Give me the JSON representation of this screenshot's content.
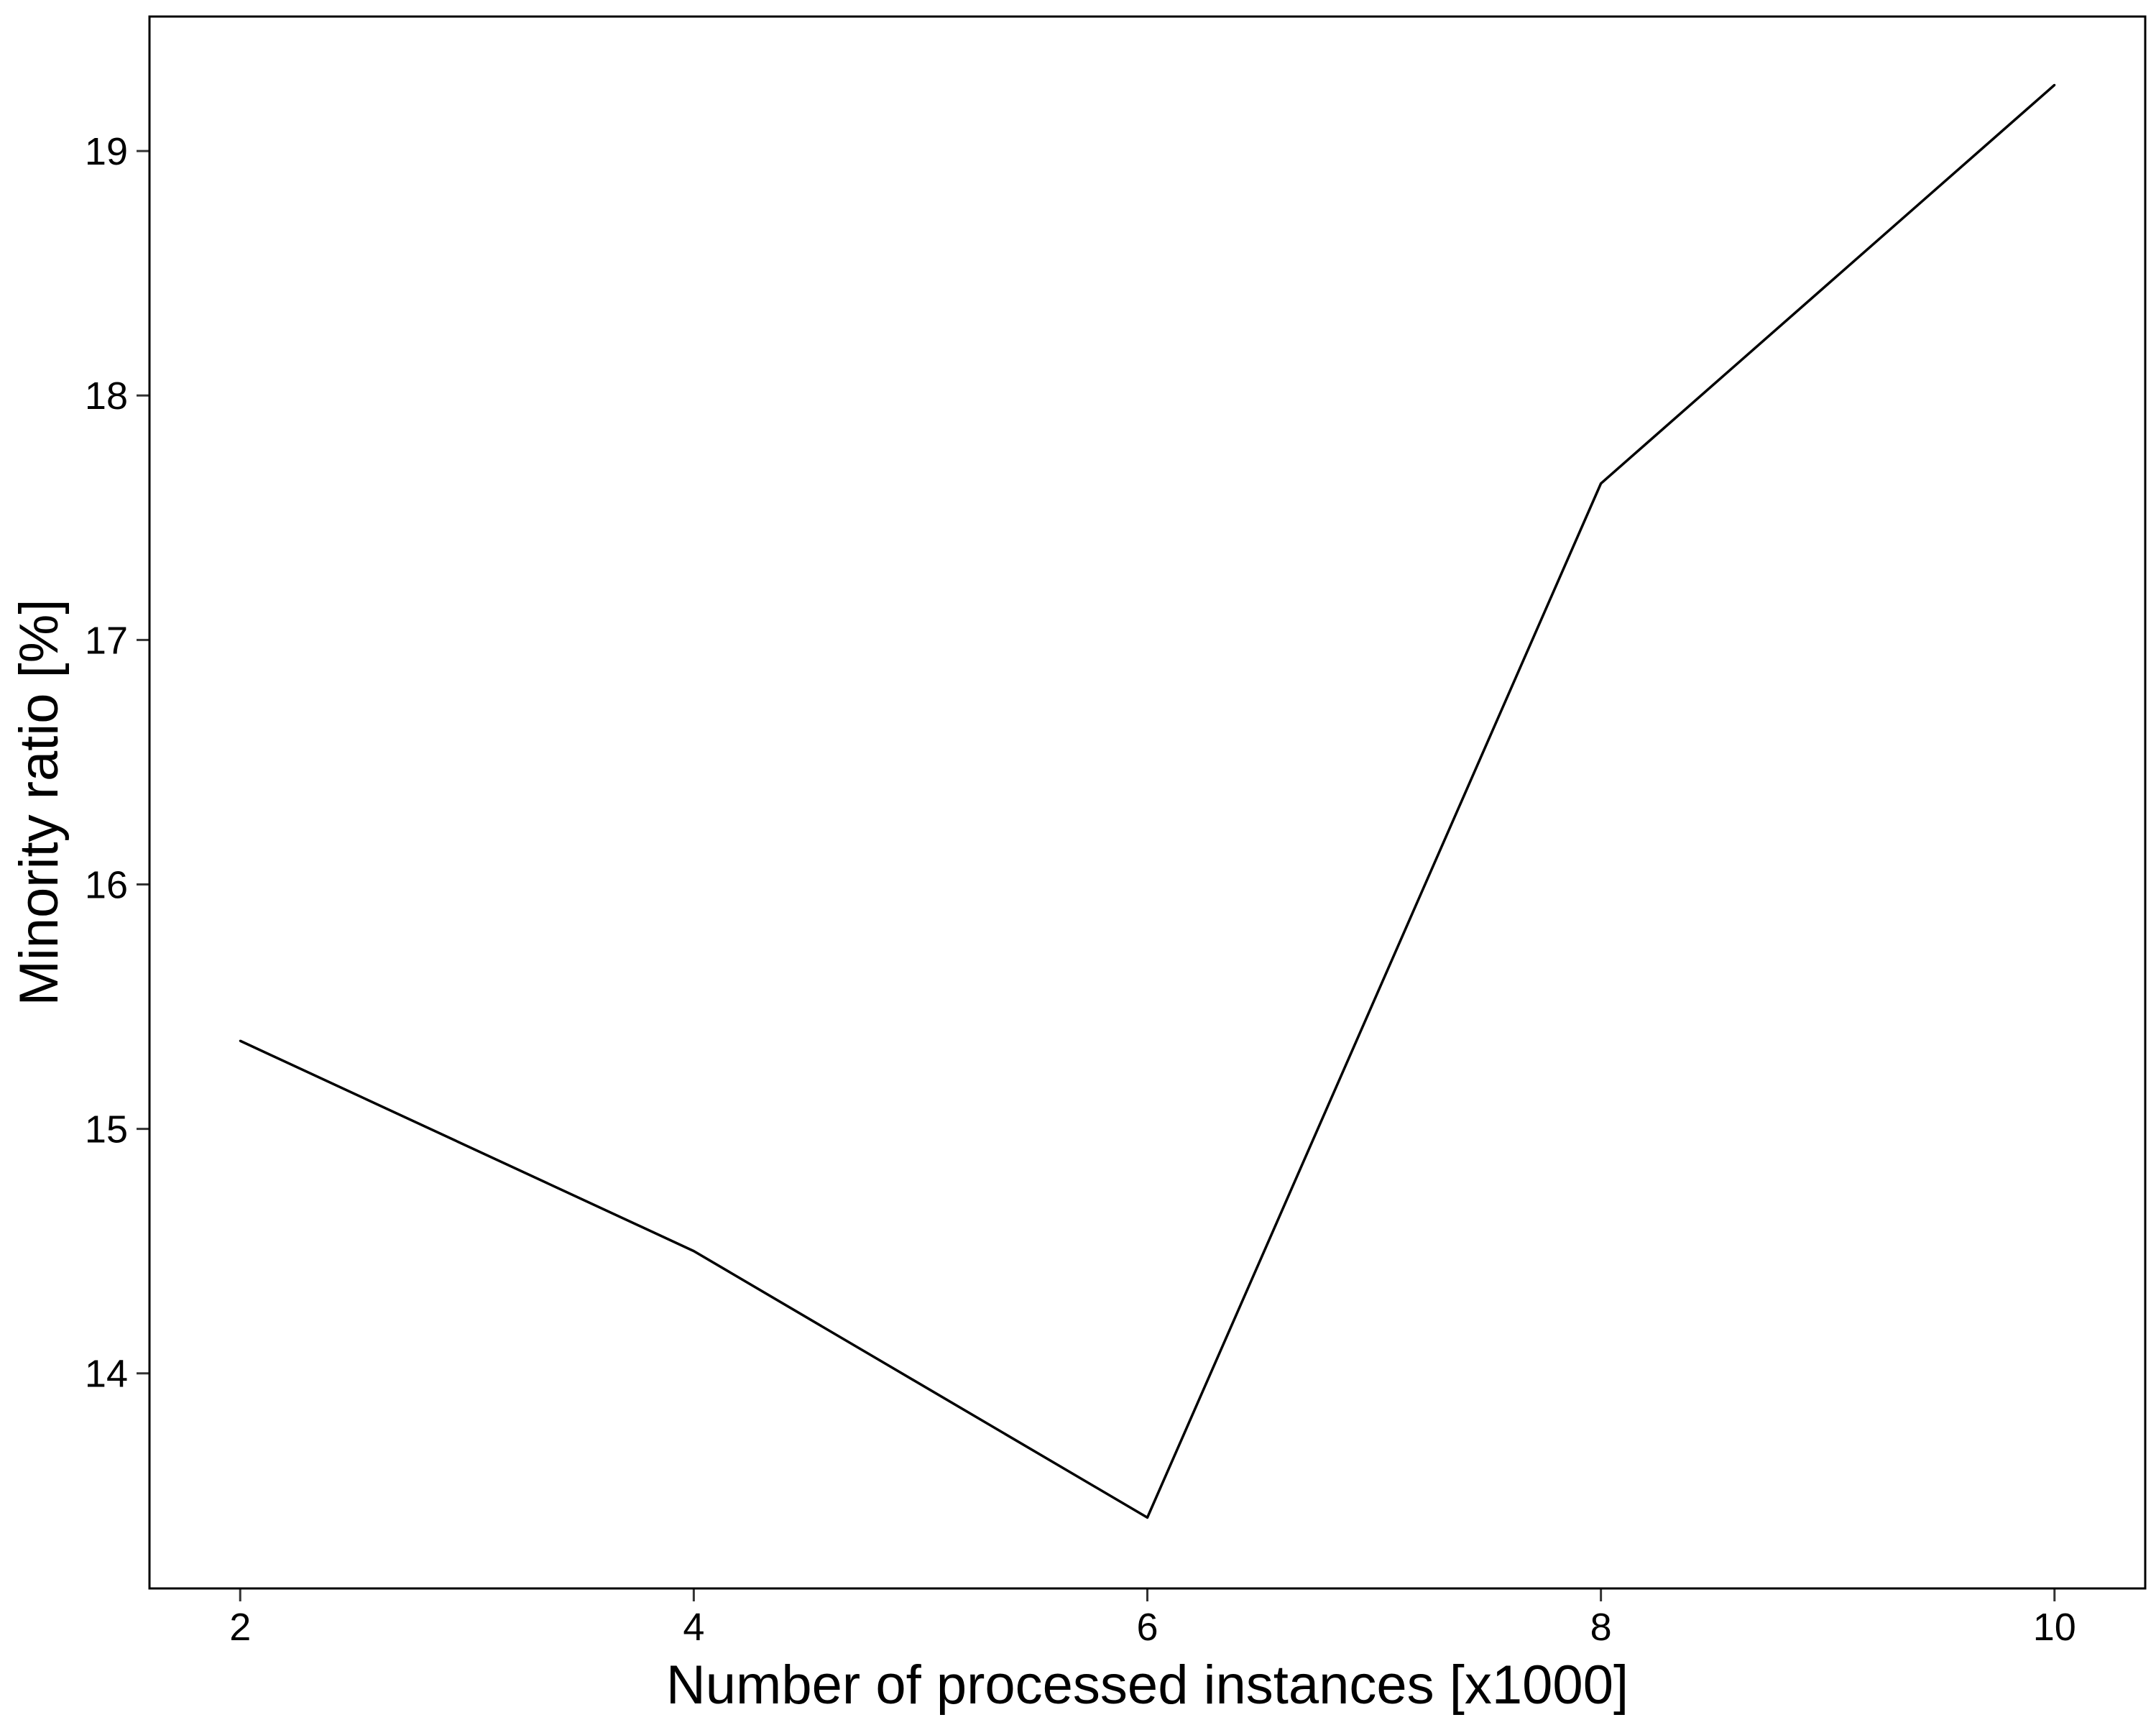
{
  "chart_data": {
    "type": "line",
    "title": "",
    "xlabel": "Number of processed instances [x1000]",
    "ylabel": "Minority ratio [%]",
    "x": [
      2,
      4,
      6,
      8,
      10
    ],
    "series": [
      {
        "values": [
          15.36,
          14.5,
          13.41,
          17.64,
          19.27
        ]
      }
    ],
    "xlim": [
      1.6,
      10.4
    ],
    "ylim": [
      13.12,
      19.55
    ],
    "xticks": [
      2,
      4,
      6,
      8,
      10
    ],
    "yticks": [
      14,
      15,
      16,
      17,
      18,
      19
    ],
    "grid": false,
    "legend": "none",
    "line_color": "#000000",
    "frame_color": "#000000",
    "background": "#ffffff"
  }
}
